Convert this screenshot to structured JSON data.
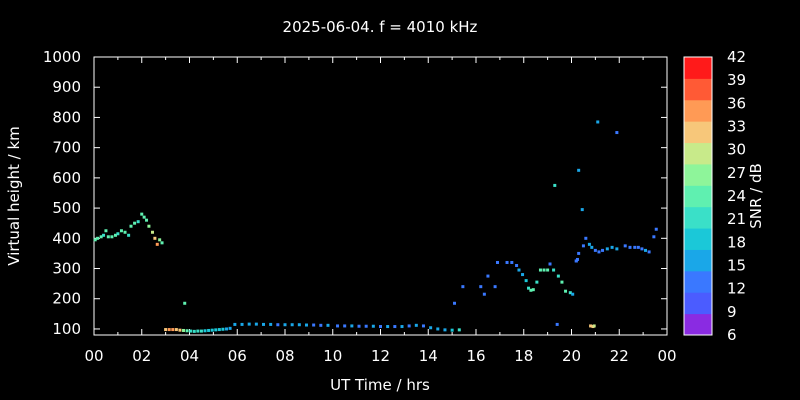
{
  "chart_data": {
    "type": "scatter",
    "title": "2025-06-04. f = 4010 kHz",
    "xlabel": "UT Time / hrs",
    "ylabel": "Virtual height / km",
    "xlim": [
      0,
      24
    ],
    "ylim": [
      80,
      1000
    ],
    "x_ticks": [
      "00",
      "02",
      "04",
      "06",
      "08",
      "10",
      "12",
      "14",
      "16",
      "18",
      "20",
      "22",
      "00"
    ],
    "y_ticks": [
      100,
      200,
      300,
      400,
      500,
      600,
      700,
      800,
      900,
      1000
    ],
    "colorbar": {
      "label": "SNR / dB",
      "range": [
        6,
        42
      ],
      "ticks": [
        6,
        9,
        12,
        15,
        18,
        21,
        24,
        27,
        30,
        33,
        36,
        39,
        42
      ],
      "colors": [
        "#8a2be2",
        "#4b5cff",
        "#3a78ff",
        "#1aa7e8",
        "#1bc8d8",
        "#3ae0c8",
        "#5ff0b0",
        "#8ef59a",
        "#c8ea8a",
        "#f7c77a",
        "#ff9a55",
        "#ff5a35",
        "#ff1a1a"
      ]
    },
    "series": [
      {
        "x": [
          0.05,
          0.15,
          0.3,
          0.4,
          0.5,
          0.6,
          0.75,
          0.9,
          1.0,
          1.15,
          1.3,
          1.45,
          1.55,
          1.7,
          1.85,
          2.0,
          2.1,
          2.2,
          2.3,
          2.45,
          2.55,
          2.65,
          2.75,
          2.85
        ],
        "y": [
          395,
          400,
          405,
          410,
          425,
          405,
          405,
          410,
          415,
          425,
          420,
          410,
          440,
          450,
          455,
          480,
          470,
          460,
          440,
          420,
          400,
          380,
          395,
          385
        ],
        "snr": [
          24,
          23,
          24,
          22,
          24,
          24,
          23,
          24,
          22,
          23,
          23,
          22,
          24,
          23,
          22,
          25,
          24,
          25,
          27,
          30,
          33,
          35,
          27,
          25
        ]
      },
      {
        "x": [
          3.0,
          3.15,
          3.3,
          3.45,
          3.6,
          3.75,
          3.9,
          4.05,
          4.2,
          4.35,
          4.5,
          4.65,
          4.8,
          4.95,
          5.1,
          5.25,
          5.4,
          5.55,
          5.7
        ],
        "y": [
          98,
          98,
          98,
          98,
          96,
          95,
          94,
          93,
          92,
          93,
          93,
          94,
          95,
          96,
          97,
          98,
          99,
          100,
          102
        ],
        "snr": [
          33,
          35,
          36,
          33,
          32,
          28,
          25,
          22,
          20,
          20,
          20,
          19,
          18,
          18,
          19,
          18,
          18,
          17,
          17
        ]
      },
      {
        "x": [
          5.9,
          6.2,
          6.5,
          6.8,
          7.1,
          7.4,
          7.7,
          8.0,
          8.3,
          8.6,
          8.9,
          9.2,
          9.5,
          9.8,
          10.2,
          10.5,
          10.8,
          11.1,
          11.4,
          11.7,
          12.0,
          12.3,
          12.6,
          12.9,
          13.2,
          13.5,
          13.8,
          14.1,
          14.4,
          14.7,
          15.0,
          15.3
        ],
        "y": [
          115,
          115,
          116,
          116,
          115,
          115,
          114,
          114,
          114,
          114,
          113,
          113,
          112,
          112,
          110,
          110,
          110,
          109,
          109,
          109,
          108,
          108,
          108,
          108,
          110,
          112,
          110,
          104,
          100,
          97,
          96,
          97
        ],
        "snr": [
          15,
          15,
          15,
          16,
          15,
          15,
          14,
          15,
          16,
          15,
          15,
          14,
          14,
          15,
          14,
          14,
          15,
          14,
          14,
          15,
          14,
          15,
          14,
          15,
          14,
          15,
          14,
          15,
          16,
          17,
          18,
          20
        ]
      },
      {
        "x": [
          3.8
        ],
        "y": [
          185
        ],
        "snr": [
          25
        ]
      },
      {
        "x": [
          15.1,
          15.45,
          16.2,
          16.35,
          16.5,
          16.8,
          16.9,
          17.3,
          17.5,
          17.7,
          17.8,
          17.95,
          18.1,
          18.2,
          18.3,
          18.4,
          18.55,
          18.7,
          18.85,
          19.0,
          19.1,
          19.25,
          19.45,
          19.6,
          19.75,
          19.95,
          20.05,
          20.2,
          20.25,
          20.3,
          20.5,
          20.6,
          20.75,
          20.85,
          21.0,
          21.15,
          21.3,
          21.5,
          21.7,
          21.9,
          22.25,
          22.45,
          22.65,
          22.8,
          22.95,
          23.1,
          23.25,
          23.45,
          23.55
        ],
        "y": [
          185,
          240,
          240,
          215,
          275,
          240,
          320,
          320,
          320,
          310,
          295,
          280,
          260,
          235,
          228,
          230,
          255,
          295,
          295,
          295,
          315,
          295,
          275,
          255,
          225,
          220,
          215,
          325,
          330,
          350,
          375,
          400,
          380,
          370,
          360,
          355,
          360,
          365,
          370,
          365,
          375,
          370,
          370,
          370,
          365,
          360,
          355,
          405,
          430
        ],
        "snr": [
          13,
          12,
          12,
          12,
          12,
          12,
          12,
          13,
          13,
          14,
          15,
          17,
          19,
          22,
          23,
          23,
          22,
          24,
          25,
          23,
          14,
          21,
          22,
          24,
          25,
          22,
          16,
          12,
          13,
          12,
          13,
          14,
          15,
          16,
          14,
          14,
          14,
          15,
          15,
          16,
          13,
          12,
          14,
          12,
          13,
          15,
          14,
          12,
          12
        ]
      },
      {
        "x": [
          19.3,
          19.4,
          20.8,
          20.9,
          20.95,
          21.1,
          21.9,
          20.3,
          20.45,
          20.2
        ],
        "y": [
          575,
          115,
          110,
          108,
          110,
          785,
          750,
          625,
          495,
          325
        ],
        "snr": [
          21,
          14,
          33,
          32,
          30,
          15,
          14,
          16,
          15,
          12
        ]
      }
    ]
  }
}
